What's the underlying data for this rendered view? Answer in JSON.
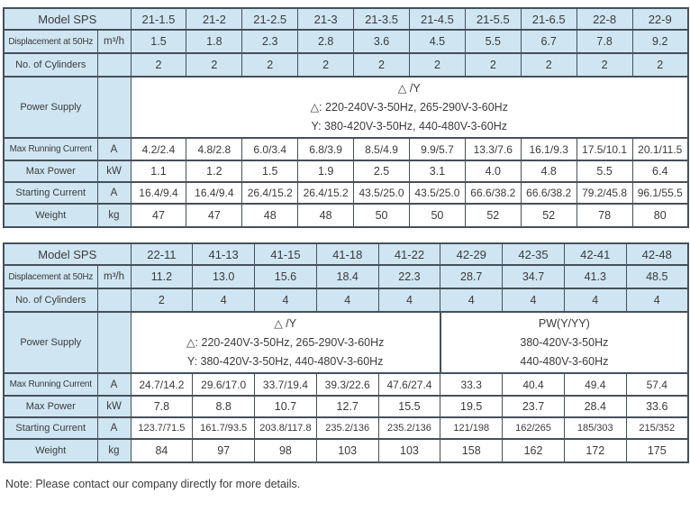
{
  "colors": {
    "cell_blue": "#cfe5f2",
    "border": "#46505a",
    "text": "#3b3b3b"
  },
  "note": "Note: Please contact our company directly for more details.",
  "tables": [
    {
      "header": {
        "label": "Model SPS",
        "models": [
          "21-1.5",
          "21-2",
          "21-2.5",
          "21-3",
          "21-3.5",
          "21-4.5",
          "21-5.5",
          "21-6.5",
          "22-8",
          "22-9"
        ]
      },
      "rows": [
        {
          "key": "displacement",
          "label": "Displacement at 50Hz",
          "unit": "m³/h",
          "values": [
            "1.5",
            "1.8",
            "2.3",
            "2.8",
            "3.6",
            "4.5",
            "5.5",
            "6.7",
            "7.8",
            "9.2"
          ]
        },
        {
          "key": "cylinders",
          "label": "No. of Cylinders",
          "unit": "",
          "values": [
            "2",
            "2",
            "2",
            "2",
            "2",
            "2",
            "2",
            "2",
            "2",
            "2"
          ]
        },
        {
          "key": "power_supply",
          "label": "Power Supply",
          "unit": "",
          "sections": [
            {
              "span": 10,
              "lines": [
                "△ /Y",
                "△: 220-240V-3-50Hz, 265-290V-3-60Hz",
                "Y: 380-420V-3-50Hz, 440-480V-3-60Hz"
              ]
            }
          ]
        },
        {
          "key": "max_running_current",
          "label": "Max Running Current",
          "unit": "A",
          "values": [
            "4.2/2.4",
            "4.8/2.8",
            "6.0/3.4",
            "6.8/3.9",
            "8.5/4.9",
            "9.9/5.7",
            "13.3/7.6",
            "16.1/9.3",
            "17.5/10.1",
            "20.1/11.5"
          ]
        },
        {
          "key": "max_power",
          "label": "Max Power",
          "unit": "kW",
          "values": [
            "1.1",
            "1.2",
            "1.5",
            "1.9",
            "2.5",
            "3.1",
            "4.0",
            "4.8",
            "5.5",
            "6.4"
          ]
        },
        {
          "key": "starting_current",
          "label": "Starting Current",
          "unit": "A",
          "values": [
            "16.4/9.4",
            "16.4/9.4",
            "26.4/15.2",
            "26.4/15.2",
            "43.5/25.0",
            "43.5/25.0",
            "66.6/38.2",
            "66.6/38.2",
            "79.2/45.8",
            "96.1/55.5"
          ]
        },
        {
          "key": "weight",
          "label": "Weight",
          "unit": "kg",
          "values": [
            "47",
            "47",
            "48",
            "48",
            "50",
            "50",
            "52",
            "52",
            "78",
            "80"
          ]
        }
      ]
    },
    {
      "header": {
        "label": "Model SPS",
        "models": [
          "22-11",
          "41-13",
          "41-15",
          "41-18",
          "41-22",
          "42-29",
          "42-35",
          "42-41",
          "42-48"
        ]
      },
      "rows": [
        {
          "key": "displacement",
          "label": "Displacement at 50Hz",
          "unit": "m³/h",
          "values": [
            "11.2",
            "13.0",
            "15.6",
            "18.4",
            "22.3",
            "28.7",
            "34.7",
            "41.3",
            "48.5"
          ]
        },
        {
          "key": "cylinders",
          "label": "No. of Cylinders",
          "unit": "",
          "values": [
            "2",
            "4",
            "4",
            "4",
            "4",
            "4",
            "4",
            "4",
            "4"
          ]
        },
        {
          "key": "power_supply",
          "label": "Power Supply",
          "unit": "",
          "sections": [
            {
              "span": 5,
              "lines": [
                "△ /Y",
                "△: 220-240V-3-50Hz, 265-290V-3-60Hz",
                "Y: 380-420V-3-50Hz, 440-480V-3-60Hz"
              ]
            },
            {
              "span": 4,
              "lines": [
                "PW(Y/YY)",
                "380-420V-3-50Hz",
                "440-480V-3-60Hz"
              ]
            }
          ]
        },
        {
          "key": "max_running_current",
          "label": "Max Running Current",
          "unit": "A",
          "values": [
            "24.7/14.2",
            "29.6/17.0",
            "33.7/19.4",
            "39.3/22.6",
            "47.6/27.4",
            "33.3",
            "40.4",
            "49.4",
            "57.4"
          ]
        },
        {
          "key": "max_power",
          "label": "Max Power",
          "unit": "kW",
          "values": [
            "7.8",
            "8.8",
            "10.7",
            "12.7",
            "15.5",
            "19.5",
            "23.7",
            "28.4",
            "33.6"
          ]
        },
        {
          "key": "starting_current",
          "label": "Starting Current",
          "unit": "A",
          "values": [
            "123.7/71.5",
            "161.7/93.5",
            "203.8/117.8",
            "235.2/136",
            "235.2/136",
            "121/198",
            "162/265",
            "185/303",
            "215/352"
          ]
        },
        {
          "key": "weight",
          "label": "Weight",
          "unit": "kg",
          "values": [
            "84",
            "97",
            "98",
            "103",
            "103",
            "158",
            "162",
            "172",
            "175"
          ]
        }
      ]
    }
  ]
}
